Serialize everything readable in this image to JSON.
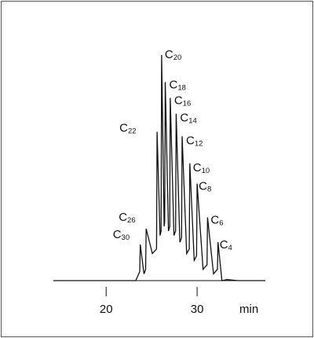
{
  "chart_data": {
    "type": "line",
    "xlabel": "min",
    "xticks": [
      20,
      30
    ],
    "xlim": [
      14.2,
      37.5
    ],
    "ylim": [
      0,
      100
    ],
    "grid": false,
    "peaks": [
      {
        "x": 23.75,
        "y": 16,
        "label": "C",
        "sub": "30"
      },
      {
        "x": 24.4,
        "y": 23,
        "label": "C",
        "sub": "26"
      },
      {
        "x": 25.6,
        "y": 66,
        "label": "C",
        "sub": "22"
      },
      {
        "x": 26.1,
        "y": 100,
        "label": "C",
        "sub": "20"
      },
      {
        "x": 26.5,
        "y": 88,
        "label": "C",
        "sub": "18"
      },
      {
        "x": 27.05,
        "y": 81,
        "label": "C",
        "sub": "16"
      },
      {
        "x": 27.7,
        "y": 74,
        "label": "C",
        "sub": "14"
      },
      {
        "x": 28.35,
        "y": 64,
        "label": "C",
        "sub": "12"
      },
      {
        "x": 29.2,
        "y": 52,
        "label": "C",
        "sub": "10"
      },
      {
        "x": 30.0,
        "y": 43,
        "label": "C",
        "sub": "8"
      },
      {
        "x": 31.15,
        "y": 28,
        "label": "C",
        "sub": "6"
      },
      {
        "x": 32.3,
        "y": 17,
        "label": "C",
        "sub": "4"
      }
    ]
  }
}
